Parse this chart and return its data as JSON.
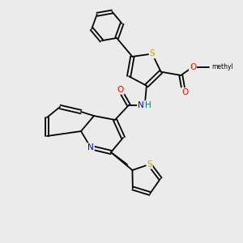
{
  "background_color": "#ebebeb",
  "atom_colors": {
    "S": "#c8a000",
    "N": "#0000cc",
    "O": "#ff0000",
    "C": "#000000",
    "H": "#008080"
  },
  "bond_color": "#000000",
  "figsize": [
    3.0,
    3.0
  ],
  "dpi": 100
}
